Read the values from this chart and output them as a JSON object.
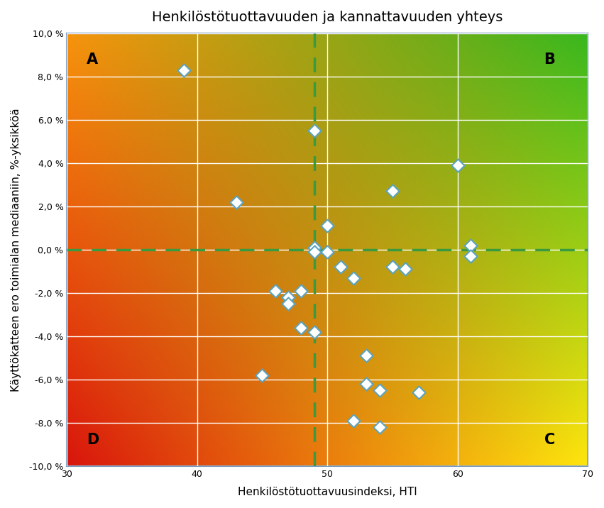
{
  "title": "Henkilöstötuottavuuden ja kannattavuuden yhteys",
  "xlabel": "Henkilöstötuottavuusindeksi, HTI",
  "ylabel": "Käyttökatteen ero toimialan mediaaniin, %-yksikköä",
  "xlim": [
    30,
    70
  ],
  "ylim": [
    -0.1,
    0.1
  ],
  "yticks": [
    -0.1,
    -0.08,
    -0.06,
    -0.04,
    -0.02,
    0.0,
    0.02,
    0.04,
    0.06,
    0.08,
    0.1
  ],
  "ytick_labels": [
    "-10,0 %",
    "-8,0 %",
    "-6,0 %",
    "-4,0 %",
    "-2,0 %",
    "0,0 %",
    "2,0 %",
    "4,0 %",
    "6,0 %",
    "8,0 %",
    "10,0 %"
  ],
  "xticks": [
    30,
    40,
    50,
    60,
    70
  ],
  "vline_x": 49,
  "hline_y": 0.0,
  "quadrant_labels": [
    "A",
    "B",
    "C",
    "D"
  ],
  "quadrant_positions": [
    [
      31.5,
      0.091
    ],
    [
      67.5,
      0.091
    ],
    [
      67.5,
      -0.091
    ],
    [
      31.5,
      -0.091
    ]
  ],
  "scatter_x": [
    39,
    43,
    45,
    46,
    47,
    47,
    48,
    48,
    49,
    49,
    49,
    49,
    50,
    50,
    51,
    52,
    52,
    53,
    53,
    54,
    54,
    55,
    55,
    56,
    57,
    60,
    61,
    61
  ],
  "scatter_y": [
    0.083,
    0.022,
    -0.058,
    -0.019,
    -0.022,
    -0.025,
    -0.036,
    -0.019,
    0.055,
    0.001,
    -0.001,
    -0.038,
    0.011,
    -0.001,
    -0.008,
    -0.013,
    -0.079,
    -0.049,
    -0.062,
    -0.065,
    -0.082,
    0.027,
    -0.008,
    -0.009,
    -0.066,
    0.039,
    0.002,
    -0.003
  ],
  "marker_facecolor": "white",
  "marker_edgecolor": "#5BA3C0",
  "marker_size": 85,
  "marker_linewidth": 1.5,
  "dashed_line_color": "#3A9A40",
  "grid_color": "white",
  "title_fontsize": 14,
  "label_fontsize": 11,
  "quadrant_fontsize": 15,
  "background_outer": "#ffffff",
  "frame_color": "#7B9BBF",
  "colors_red": [
    0.85,
    0.08,
    0.05
  ],
  "colors_orange": [
    0.96,
    0.4,
    0.05
  ],
  "colors_yellow": [
    1.0,
    0.9,
    0.05
  ],
  "colors_yellow_green": [
    0.78,
    0.92,
    0.15
  ],
  "colors_green": [
    0.22,
    0.72,
    0.12
  ]
}
